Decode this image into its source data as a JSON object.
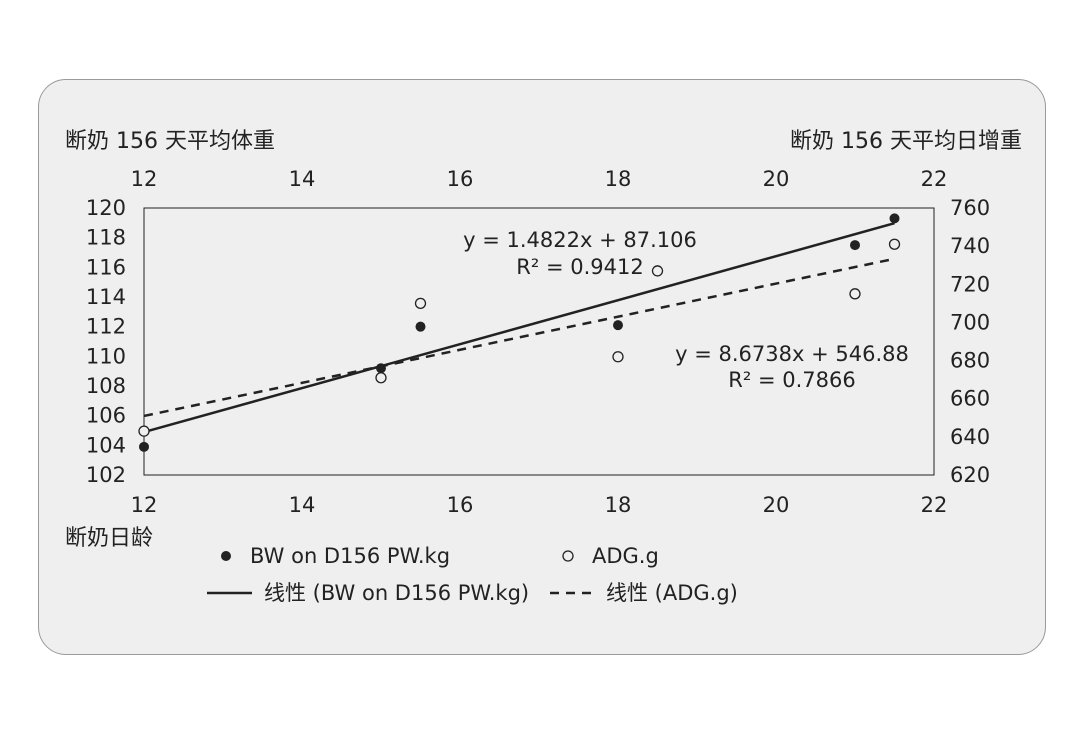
{
  "chart_data": {
    "type": "scatter",
    "left_title": "断奶 156 天平均体重",
    "right_title": "断奶 156 天平均日增重",
    "xlabel": "断奶日龄",
    "x_range": [
      12,
      22
    ],
    "x_ticks": [
      "12",
      "14",
      "16",
      "18",
      "20",
      "22"
    ],
    "y_left_range": [
      102,
      120
    ],
    "y_left_ticks": [
      "120",
      "118",
      "116",
      "114",
      "112",
      "110",
      "108",
      "106",
      "104",
      "102"
    ],
    "y_right_range": [
      620,
      760
    ],
    "y_right_ticks": [
      "760",
      "740",
      "720",
      "700",
      "680",
      "660",
      "640",
      "620"
    ],
    "series": [
      {
        "name": "BW on D156 PW.kg",
        "axis": "left",
        "marker": "filled-circle",
        "points": [
          [
            12,
            103.9
          ],
          [
            15,
            109.2
          ],
          [
            15.5,
            112.0
          ],
          [
            18,
            112.1
          ],
          [
            18.5,
            115.8
          ],
          [
            21,
            117.5
          ],
          [
            21.5,
            119.3
          ]
        ],
        "trendline": {
          "label": "线性 (BW on D156 PW.kg)",
          "slope": 1.4822,
          "intercept": 87.106,
          "equation": "y = 1.4822x + 87.106",
          "r2": "R² = 0.9412",
          "style": "solid"
        }
      },
      {
        "name": "ADG.g",
        "axis": "right",
        "marker": "open-circle",
        "points": [
          [
            12,
            643
          ],
          [
            15,
            671
          ],
          [
            15.5,
            710
          ],
          [
            18,
            682
          ],
          [
            18.5,
            727
          ],
          [
            21,
            715
          ],
          [
            21.5,
            741
          ]
        ],
        "trendline": {
          "label": "线性 (ADG.g)",
          "slope": 8.6738,
          "intercept": 546.88,
          "equation": "y = 8.6738x + 546.88",
          "r2": "R² = 0.7866",
          "style": "dashed"
        }
      }
    ],
    "grid": false
  }
}
